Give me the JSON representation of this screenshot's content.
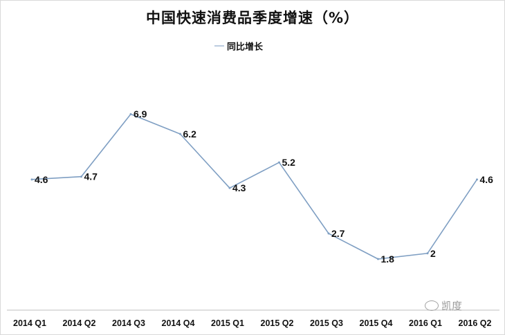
{
  "chart_data": {
    "type": "line",
    "title": "中国快速消费品季度增速（%）",
    "categories": [
      "2014 Q1",
      "2014 Q2",
      "2014 Q3",
      "2014 Q4",
      "2015 Q1",
      "2015 Q2",
      "2015 Q3",
      "2015 Q4",
      "2016 Q1",
      "2016 Q2"
    ],
    "series": [
      {
        "name": "同比增长",
        "values": [
          4.6,
          4.7,
          6.9,
          6.2,
          4.3,
          5.2,
          2.7,
          1.8,
          2,
          4.6
        ]
      }
    ],
    "data_labels": [
      "4.6",
      "4.7",
      "6.9",
      "6.2",
      "4.3",
      "5.2",
      "2.7",
      "1.8",
      "2",
      "4.6"
    ],
    "ylim": [
      0,
      8
    ],
    "grid": false,
    "legend_position": "top",
    "colors": {
      "line": "#7f9fc3",
      "text": "#111111",
      "axis": "#bfbfbf"
    }
  },
  "watermark": {
    "icon": "wechat-icon",
    "text": "凯度"
  }
}
